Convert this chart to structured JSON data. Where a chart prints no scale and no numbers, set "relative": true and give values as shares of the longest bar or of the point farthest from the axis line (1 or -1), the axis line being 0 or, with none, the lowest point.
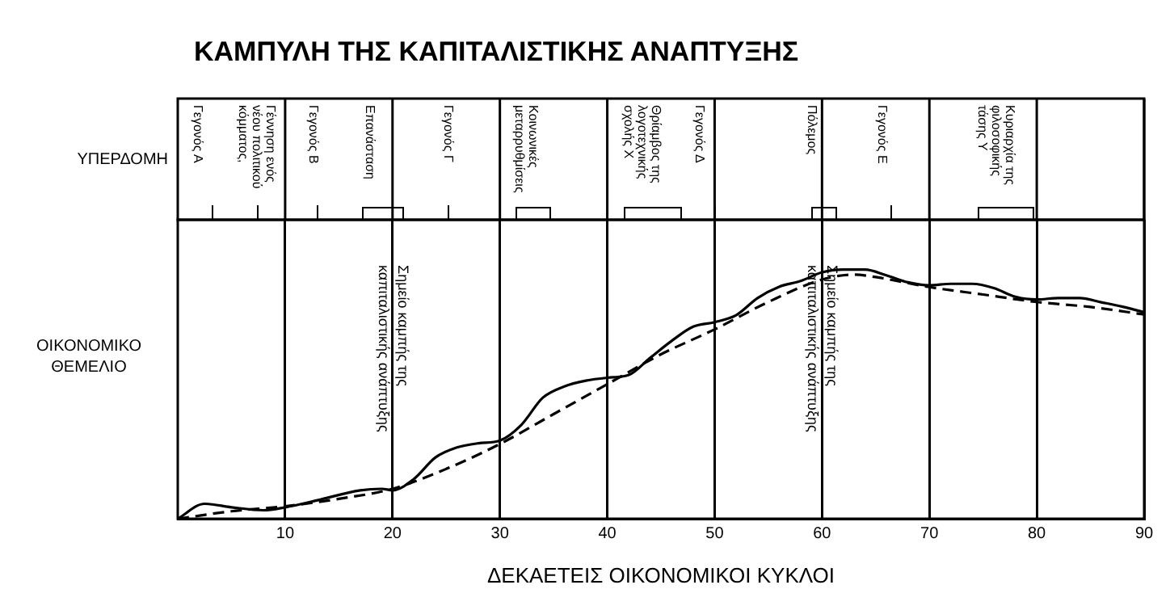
{
  "chart_data": {
    "type": "line",
    "title": "ΚΑΜΠΥΛΗ ΤΗΣ ΚΑΠΙΤΑΛΙΣΤΙΚΗΣ ΑΝΑΠΤΥΞΗΣ",
    "xlabel": "ΔΕΚΑΕΤΕΙΣ ΟΙΚΟΝΟΜΙΚΟΙ ΚΥΚΛΟΙ",
    "ylabel": "ΟΙΚΟΝΟΜΙΚΟ ΘΕΜΕΛΙΟ",
    "relative": true,
    "xlim": [
      0,
      90
    ],
    "xticks": [
      10,
      20,
      30,
      40,
      50,
      60,
      70,
      80,
      90
    ],
    "grid": "x",
    "marker": "none",
    "series": [
      {
        "color": "#000000",
        "line_style": "solid",
        "x": [
          0,
          2.5,
          5,
          8,
          10,
          13,
          17,
          19,
          20,
          22,
          24,
          26,
          28,
          30,
          32,
          34,
          36,
          38,
          40,
          42,
          44,
          46,
          48,
          50,
          52,
          54,
          56,
          58,
          60,
          62,
          64,
          66,
          68,
          70,
          72,
          74,
          76,
          78,
          80,
          82,
          84,
          86,
          88,
          90
        ],
        "values": [
          0,
          0.06,
          0.046,
          0.034,
          0.046,
          0.074,
          0.114,
          0.12,
          0.114,
          0.16,
          0.246,
          0.286,
          0.303,
          0.314,
          0.377,
          0.486,
          0.531,
          0.554,
          0.566,
          0.577,
          0.646,
          0.714,
          0.771,
          0.789,
          0.817,
          0.886,
          0.931,
          0.954,
          0.989,
          1,
          1,
          0.977,
          0.949,
          0.937,
          0.943,
          0.943,
          0.926,
          0.891,
          0.88,
          0.886,
          0.886,
          0.869,
          0.851,
          0.829
        ]
      },
      {
        "color": "#000000",
        "line_style": "dashed",
        "x": [
          0,
          5,
          10,
          15,
          20,
          25,
          30,
          35,
          40,
          45,
          50,
          55,
          60,
          63,
          65,
          70,
          75,
          80,
          85,
          90
        ],
        "values": [
          0,
          0.03,
          0.05,
          0.08,
          0.12,
          0.2,
          0.3,
          0.42,
          0.54,
          0.66,
          0.76,
          0.87,
          0.96,
          0.98,
          0.97,
          0.93,
          0.9,
          0.87,
          0.85,
          0.82
        ]
      }
    ],
    "annotations": [
      "ΥΠΕΡΔΟΜΗ",
      "Γεγονός Α",
      "Γέννηση ενός νέου πολιτικού κόμματος,",
      "Γεγονός Β",
      "Επανάσταση",
      "Γεγονός Γ",
      "Κοινωνικές μεταρρυθμίσεις",
      "Θρίαμβος της λογοτεχνικής σχολής Χ",
      "Γεγονός Δ",
      "Πόλεμος",
      "Γεγονός Ε",
      "Κυριαρχία της φιλοσοφικής τάσης Υ",
      "Σημείο καμπής της καπιταλιστικής ανάπτυξης",
      "Σημείο καμπής της καπιταλιστικής ανάπτυξης"
    ]
  }
}
